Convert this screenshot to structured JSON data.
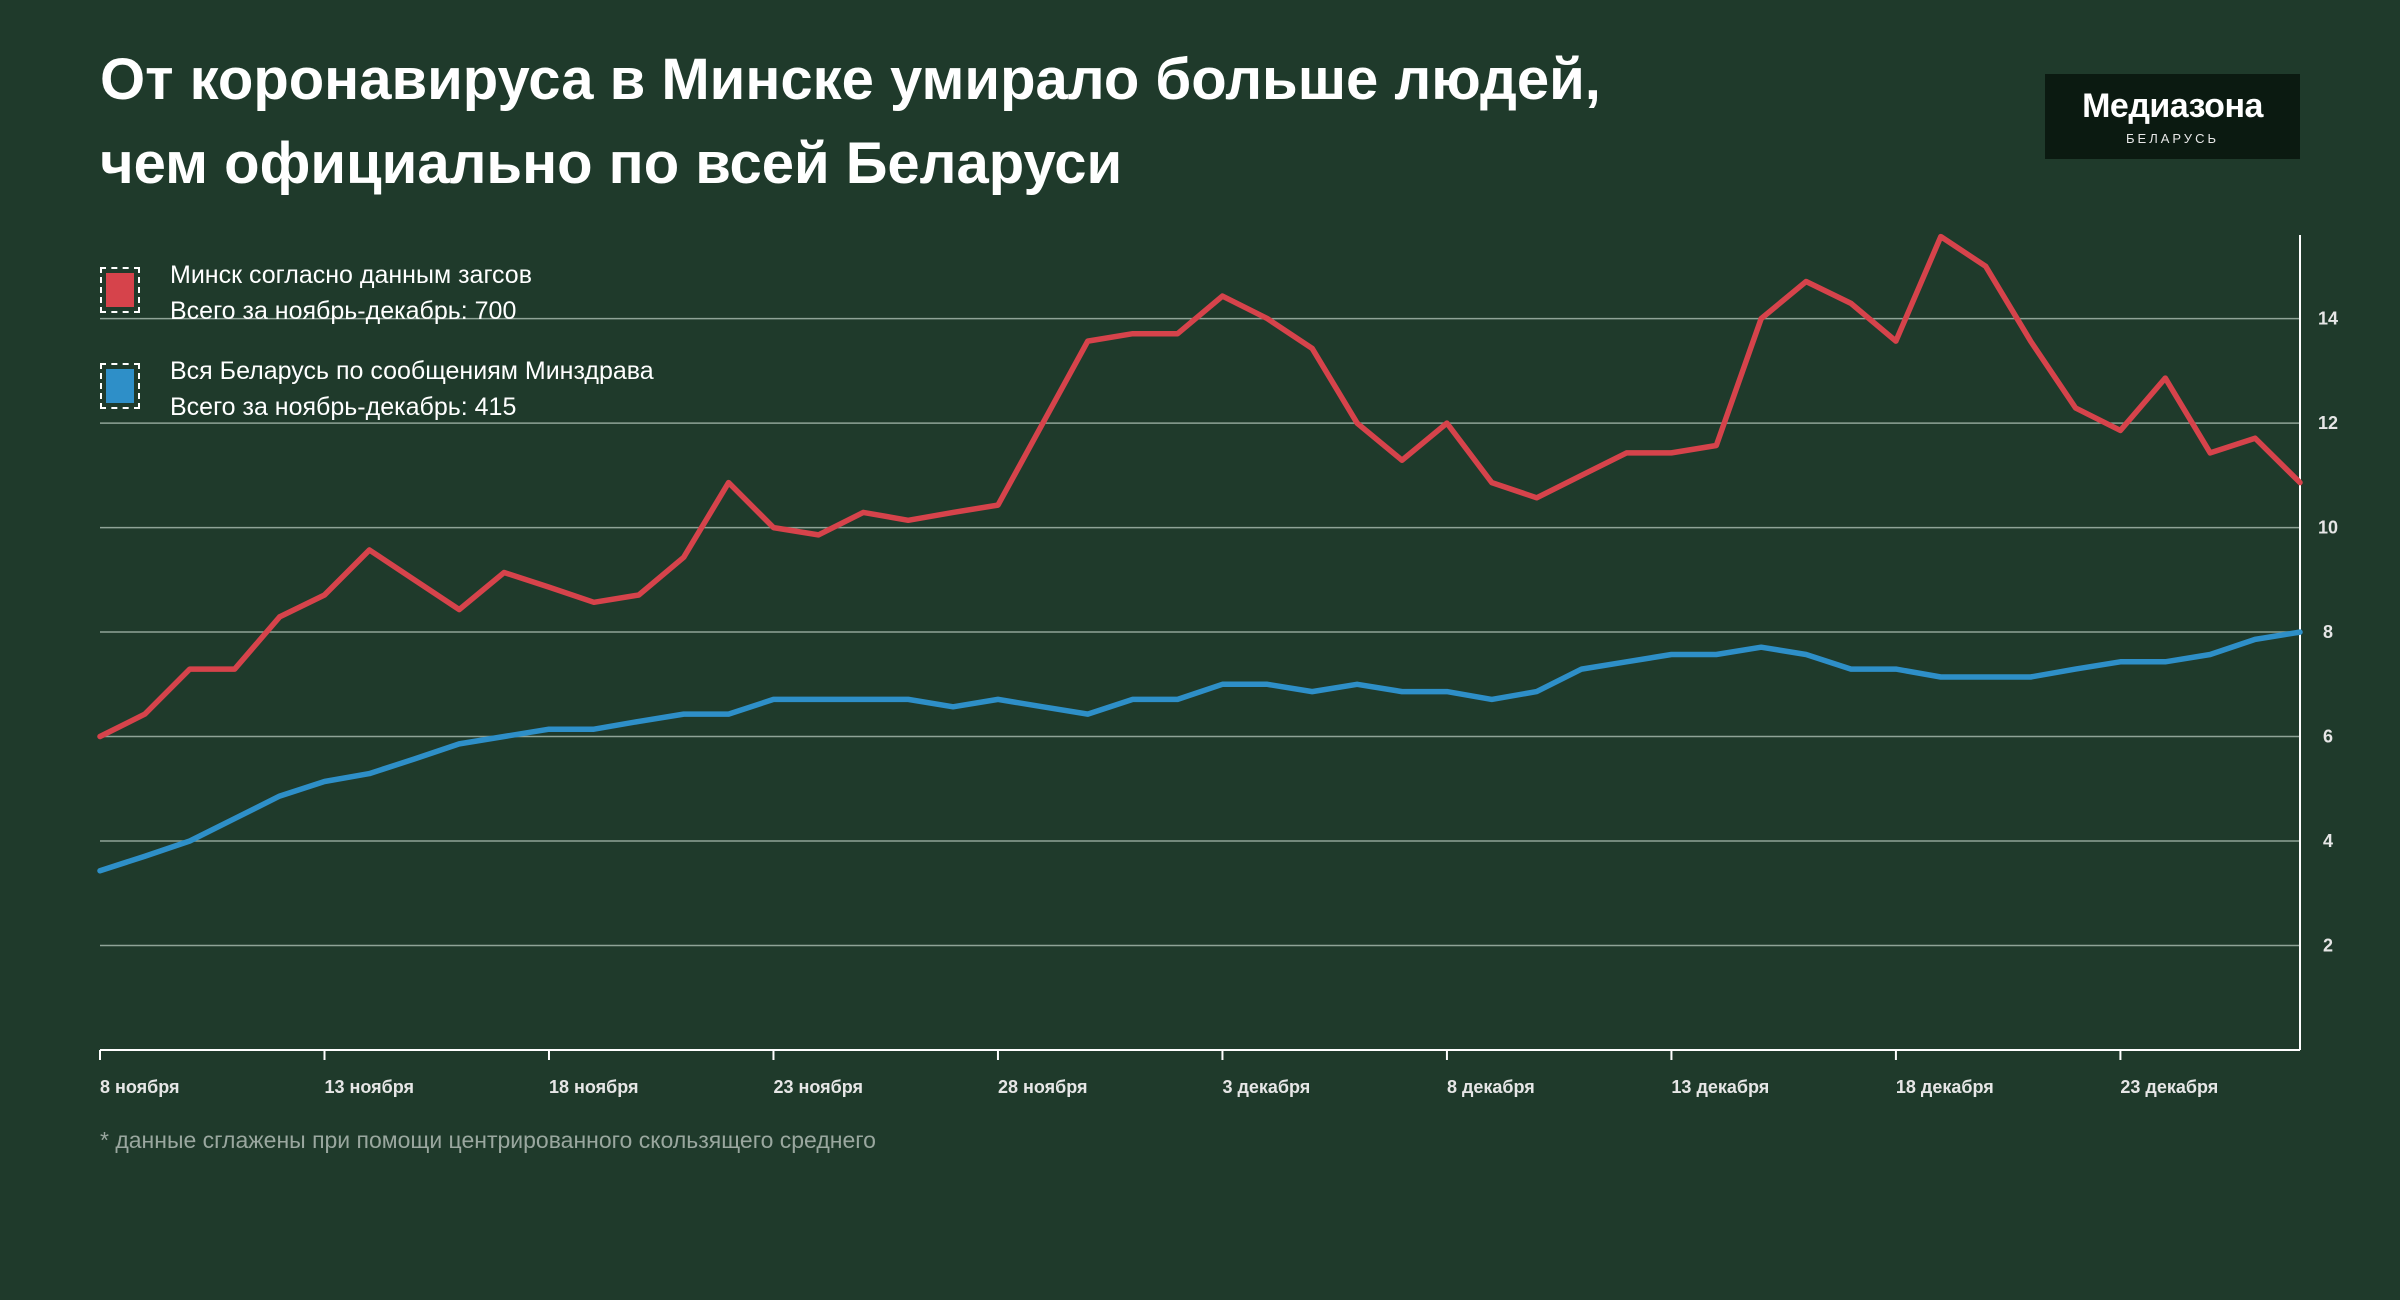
{
  "title_lines": [
    "От коронавируса в Минске умирало больше людей,",
    "чем официально по всей Беларуси"
  ],
  "logo": {
    "name": "Медиазона",
    "sub": "БЕЛАРУСЬ"
  },
  "footnote": "* данные сглажены при помощи центрированного скользящего среднего",
  "colors": {
    "background": "#1f3a2b",
    "minsk": "#d6434b",
    "belarus": "#2e8fc8",
    "grid": "#8fa397"
  },
  "chart_data": {
    "type": "line",
    "title": "От коронавируса в Минске умирало больше людей, чем официально по всей Беларуси",
    "xlabel": "",
    "ylabel": "",
    "ylim": [
      0,
      15.6
    ],
    "yticks": [
      2,
      4,
      6,
      8,
      10,
      12,
      14
    ],
    "grid": true,
    "legend_position": "top-left",
    "x": [
      "8 ноября",
      "9 ноября",
      "10 ноября",
      "11 ноября",
      "12 ноября",
      "13 ноября",
      "14 ноября",
      "15 ноября",
      "16 ноября",
      "17 ноября",
      "18 ноября",
      "19 ноября",
      "20 ноября",
      "21 ноября",
      "22 ноября",
      "23 ноября",
      "24 ноября",
      "25 ноября",
      "26 ноября",
      "27 ноября",
      "28 ноября",
      "29 ноября",
      "30 ноября",
      "1 декабря",
      "2 декабря",
      "3 декабря",
      "4 декабря",
      "5 декабря",
      "6 декабря",
      "7 декабря",
      "8 декабря",
      "9 декабря",
      "10 декабря",
      "11 декабря",
      "12 декабря",
      "13 декабря",
      "14 декабря",
      "15 декабря",
      "16 декабря",
      "17 декабря",
      "18 декабря",
      "19 декабря",
      "20 декабря",
      "21 декабря",
      "22 декабря",
      "23 декабря",
      "24 декабря",
      "25 декабря",
      "26 декабря",
      "27 декабря"
    ],
    "xtick_labels": [
      "8 ноября",
      "13 ноября",
      "18 ноября",
      "23 ноября",
      "28 ноября",
      "3 декабря",
      "8 декабря",
      "13 декабря",
      "18 декабря",
      "23 декабря"
    ],
    "series": [
      {
        "name": "Минск согласно данным загсов",
        "total": "Всего за ноябрь-декабрь: 700",
        "color": "#d6434b",
        "values": [
          6.0,
          6.43,
          7.29,
          7.29,
          8.29,
          8.71,
          9.57,
          9.0,
          8.43,
          9.14,
          8.86,
          8.57,
          8.71,
          9.43,
          10.86,
          10.0,
          9.86,
          10.29,
          10.14,
          10.29,
          10.43,
          12.0,
          13.57,
          13.71,
          13.71,
          14.43,
          14.0,
          13.43,
          12.0,
          11.29,
          12.0,
          10.86,
          10.57,
          11.0,
          11.43,
          11.43,
          11.57,
          14.0,
          14.71,
          14.29,
          13.57,
          15.57,
          15.0,
          13.57,
          12.29,
          11.86,
          12.86,
          11.43,
          11.71,
          10.86
        ]
      },
      {
        "name": "Вся Беларусь по сообщениям Минздрава",
        "total": "Всего за ноябрь-декабрь: 415",
        "color": "#2e8fc8",
        "values": [
          3.43,
          3.71,
          4.0,
          4.43,
          4.86,
          5.14,
          5.29,
          5.57,
          5.86,
          6.0,
          6.14,
          6.14,
          6.29,
          6.43,
          6.43,
          6.71,
          6.71,
          6.71,
          6.71,
          6.57,
          6.71,
          6.57,
          6.43,
          6.71,
          6.71,
          7.0,
          7.0,
          6.86,
          7.0,
          6.86,
          6.86,
          6.71,
          6.86,
          7.29,
          7.43,
          7.57,
          7.57,
          7.71,
          7.57,
          7.29,
          7.29,
          7.14,
          7.14,
          7.14,
          7.29,
          7.43,
          7.43,
          7.57,
          7.86,
          8.0
        ]
      }
    ]
  }
}
